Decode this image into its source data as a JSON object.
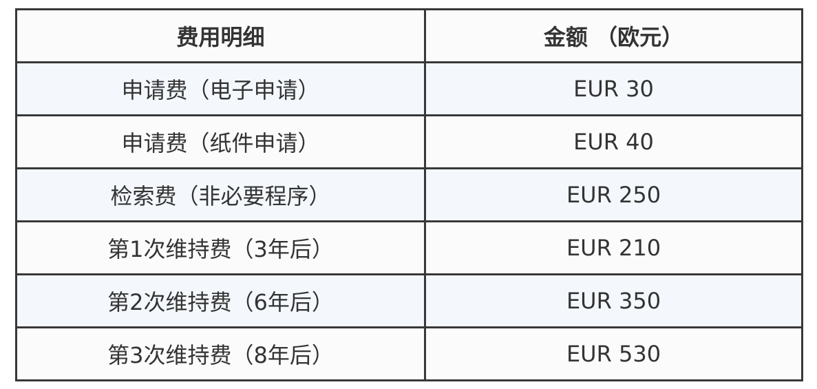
{
  "table": {
    "headers": [
      "费用明细",
      "金额 （欧元）"
    ],
    "rows": [
      [
        "申请费（电子申请）",
        "EUR 30"
      ],
      [
        "申请费（纸件申请）",
        "EUR 40"
      ],
      [
        "检索费（非必要程序）",
        "EUR 250"
      ],
      [
        "第1次维持费（3年后）",
        "EUR 210"
      ],
      [
        "第2次维持费（6年后）",
        "EUR 350"
      ],
      [
        "第3次维持费（8年后）",
        "EUR 530"
      ]
    ]
  }
}
